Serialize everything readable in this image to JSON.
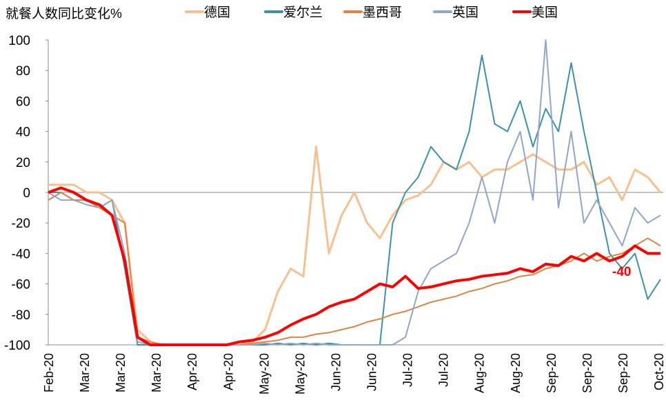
{
  "chart_data": {
    "type": "line",
    "title": "",
    "ylabel": "就餐人数同比变化%",
    "xlabel": "",
    "ylim": [
      -100,
      100
    ],
    "yticks": [
      100,
      80,
      60,
      40,
      20,
      0,
      -20,
      -40,
      -60,
      -80,
      -100
    ],
    "xtick_labels": [
      "Feb-20",
      "Mar-20",
      "Mar-20",
      "Mar-20",
      "Apr-20",
      "Apr-20",
      "May-20",
      "May-20",
      "Jun-20",
      "Jun-20",
      "Jul-20",
      "Jul-20",
      "Aug-20",
      "Aug-20",
      "Sep-20",
      "Sep-20",
      "Sep-20",
      "Oct-20"
    ],
    "x_points": 49,
    "legend_position": "top",
    "annotation": {
      "text": "-40",
      "series": "美国",
      "color": "#ff0000"
    },
    "series": [
      {
        "name": "德国",
        "color": "#f8c08f",
        "width": 3,
        "values": [
          5,
          5,
          5,
          0,
          0,
          -5,
          -20,
          -90,
          -98,
          -100,
          -100,
          -100,
          -100,
          -100,
          -100,
          -100,
          -98,
          -90,
          -65,
          -50,
          -55,
          30,
          -40,
          -15,
          0,
          -20,
          -30,
          -15,
          -5,
          -2,
          5,
          20,
          15,
          20,
          10,
          15,
          15,
          20,
          25,
          20,
          15,
          15,
          20,
          5,
          10,
          -5,
          15,
          10,
          0
        ]
      },
      {
        "name": "爱尔兰",
        "color": "#3a93a8",
        "width": 2,
        "values": [
          0,
          0,
          -5,
          -5,
          -10,
          -5,
          -50,
          -100,
          -100,
          -100,
          -100,
          -100,
          -100,
          -100,
          -100,
          -100,
          -100,
          -100,
          -99,
          -100,
          -99,
          -100,
          -99,
          -100,
          -100,
          -100,
          -100,
          -20,
          0,
          10,
          30,
          20,
          15,
          40,
          90,
          45,
          40,
          60,
          30,
          55,
          40,
          85,
          40,
          0,
          -40,
          -50,
          -40,
          -70,
          -57
        ]
      },
      {
        "name": "墨西哥",
        "color": "#dc8542",
        "width": 2,
        "values": [
          -5,
          0,
          -5,
          -5,
          -10,
          -15,
          -20,
          -95,
          -98,
          -100,
          -100,
          -100,
          -100,
          -100,
          -100,
          -100,
          -99,
          -98,
          -97,
          -95,
          -95,
          -93,
          -92,
          -90,
          -88,
          -85,
          -83,
          -80,
          -78,
          -75,
          -72,
          -70,
          -68,
          -65,
          -63,
          -60,
          -58,
          -55,
          -54,
          -50,
          -48,
          -45,
          -40,
          -45,
          -42,
          -40,
          -35,
          -30,
          -35
        ]
      },
      {
        "name": "英国",
        "color": "#8fa5cc",
        "width": 2,
        "values": [
          0,
          -5,
          -5,
          -8,
          -10,
          -5,
          -40,
          -98,
          -100,
          -100,
          -100,
          -100,
          -100,
          -100,
          -100,
          -100,
          -100,
          -99,
          -100,
          -99,
          -100,
          -99,
          -100,
          -100,
          -100,
          -100,
          -100,
          -100,
          -95,
          -65,
          -50,
          -45,
          -40,
          -20,
          10,
          -20,
          20,
          40,
          -5,
          100,
          -10,
          40,
          -20,
          -5,
          -20,
          -35,
          -10,
          -20,
          -15
        ]
      },
      {
        "name": "美国",
        "color": "#ff0000",
        "width": 4,
        "values": [
          0,
          3,
          0,
          -5,
          -8,
          -15,
          -45,
          -95,
          -100,
          -100,
          -100,
          -100,
          -100,
          -100,
          -100,
          -98,
          -97,
          -95,
          -92,
          -87,
          -83,
          -80,
          -75,
          -72,
          -70,
          -65,
          -60,
          -62,
          -55,
          -63,
          -62,
          -60,
          -58,
          -57,
          -55,
          -54,
          -53,
          -50,
          -52,
          -47,
          -48,
          -42,
          -45,
          -40,
          -45,
          -42,
          -35,
          -40,
          -40
        ]
      }
    ]
  }
}
